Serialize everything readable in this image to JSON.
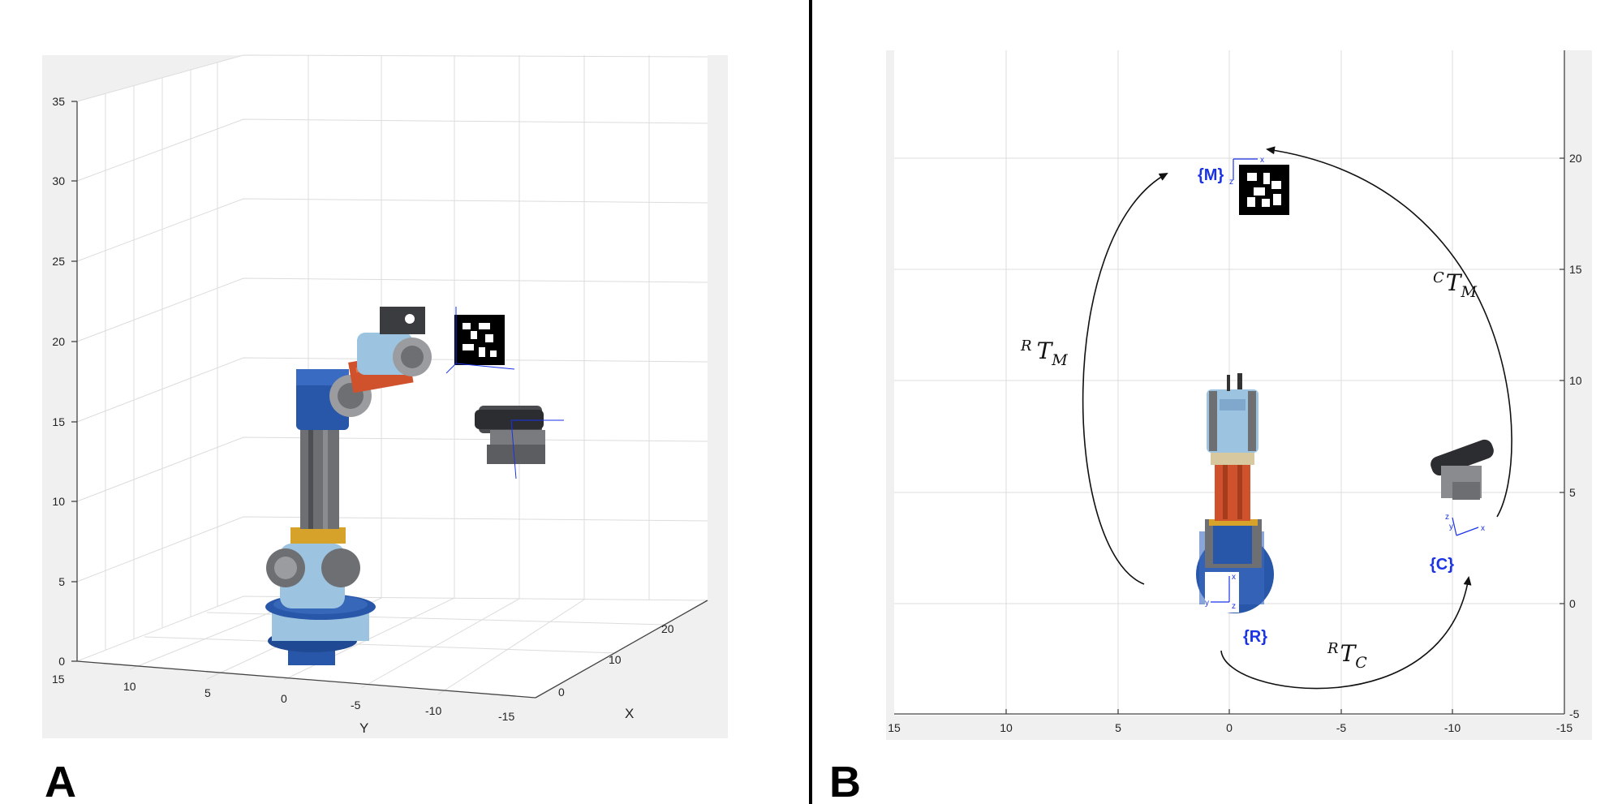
{
  "panels": {
    "a": {
      "label": "A",
      "y_axis_label": "Y",
      "x_axis_label": "X",
      "z_ticks": [
        "0",
        "5",
        "10",
        "15",
        "20",
        "25",
        "30",
        "35"
      ],
      "y_ticks": [
        "15",
        "10",
        "5",
        "0",
        "-5",
        "-10",
        "-15"
      ],
      "x_ticks": [
        "0",
        "10",
        "20"
      ]
    },
    "b": {
      "label": "B",
      "x_ticks": [
        "15",
        "10",
        "5",
        "0",
        "-5",
        "-10",
        "-15"
      ],
      "y_ticks": [
        "-5",
        "0",
        "5",
        "10",
        "15",
        "20"
      ],
      "frames": {
        "marker": "{M}",
        "camera": "{C}",
        "robot": "{R}"
      },
      "transforms": [
        {
          "pre": "R",
          "base": "T",
          "sub": "M"
        },
        {
          "pre": "C",
          "base": "T",
          "sub": "M"
        },
        {
          "pre": "R",
          "base": "T",
          "sub": "C"
        }
      ]
    }
  },
  "colors": {
    "frame_label": "#1a33e6",
    "robot_blue": "#2856a8",
    "robot_light_blue": "#9cc3e0",
    "robot_orange": "#d0522c",
    "robot_gold": "#d7a22a",
    "robot_grey": "#6d6f73",
    "panel_background": "#f0f0f0"
  }
}
